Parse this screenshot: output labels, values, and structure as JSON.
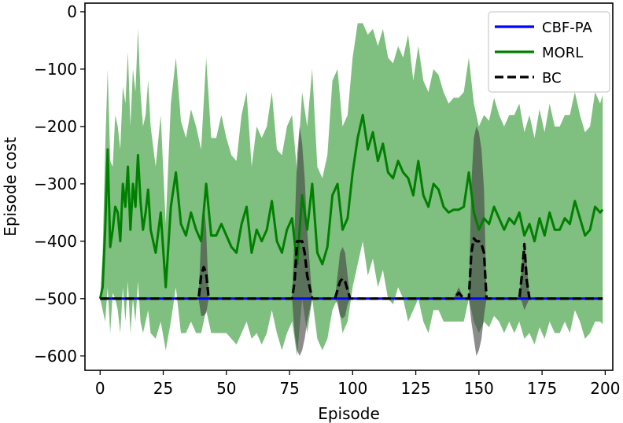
{
  "chart_data": {
    "type": "line",
    "title": "",
    "xlabel": "Episode",
    "ylabel": "Episode cost",
    "xlim": [
      -6,
      203
    ],
    "ylim": [
      -625,
      15
    ],
    "xticks": [
      0,
      25,
      50,
      75,
      100,
      125,
      150,
      175,
      200
    ],
    "yticks": [
      0,
      -100,
      -200,
      -300,
      -400,
      -500,
      -600
    ],
    "xtick_labels": [
      "0",
      "25",
      "50",
      "75",
      "100",
      "125",
      "150",
      "175",
      "200"
    ],
    "ytick_labels": [
      "0",
      "−100",
      "−200",
      "−300",
      "−400",
      "−500",
      "−600"
    ],
    "grid": false,
    "legend_position": "top-right",
    "series": [
      {
        "name": "CBF-PA",
        "color": "#0000ff",
        "style": "solid",
        "x": [
          0,
          199
        ],
        "y": [
          -500,
          -500
        ]
      },
      {
        "name": "MORL",
        "color": "#008000",
        "style": "solid",
        "band_color": "#7fbf7f",
        "x": [
          0,
          1,
          2,
          3,
          4,
          5,
          6,
          7,
          8,
          9,
          10,
          11,
          12,
          13,
          14,
          15,
          16,
          17,
          18,
          19,
          20,
          22,
          24,
          26,
          28,
          30,
          32,
          34,
          36,
          38,
          40,
          42,
          44,
          46,
          48,
          50,
          52,
          54,
          56,
          58,
          60,
          62,
          64,
          66,
          68,
          70,
          72,
          74,
          76,
          78,
          80,
          82,
          84,
          86,
          88,
          90,
          92,
          94,
          96,
          98,
          100,
          102,
          104,
          106,
          108,
          110,
          112,
          114,
          116,
          118,
          120,
          122,
          124,
          126,
          128,
          130,
          132,
          134,
          136,
          138,
          140,
          142,
          144,
          146,
          148,
          150,
          152,
          154,
          156,
          158,
          160,
          162,
          164,
          166,
          168,
          170,
          172,
          174,
          176,
          178,
          180,
          182,
          184,
          186,
          188,
          190,
          192,
          194,
          196,
          198,
          199
        ],
        "y": [
          -500,
          -480,
          -380,
          -240,
          -410,
          -380,
          -340,
          -350,
          -400,
          -300,
          -340,
          -270,
          -380,
          -300,
          -340,
          -250,
          -330,
          -380,
          -350,
          -310,
          -380,
          -420,
          -350,
          -480,
          -340,
          -280,
          -370,
          -390,
          -350,
          -380,
          -400,
          -300,
          -390,
          -390,
          -370,
          -390,
          -410,
          -420,
          -370,
          -340,
          -420,
          -380,
          -400,
          -380,
          -330,
          -400,
          -420,
          -380,
          -360,
          -440,
          -320,
          -380,
          -300,
          -420,
          -440,
          -410,
          -320,
          -300,
          -380,
          -360,
          -280,
          -220,
          -180,
          -240,
          -210,
          -260,
          -230,
          -280,
          -290,
          -260,
          -280,
          -290,
          -320,
          -260,
          -320,
          -340,
          -300,
          -310,
          -340,
          -350,
          -345,
          -345,
          -340,
          -280,
          -350,
          -380,
          -360,
          -370,
          -340,
          -360,
          -380,
          -360,
          -370,
          -350,
          -390,
          -370,
          -400,
          -360,
          -390,
          -350,
          -380,
          -380,
          -360,
          -370,
          -330,
          -360,
          -390,
          -380,
          -340,
          -350,
          -345
        ],
        "y_lower": [
          -500,
          -520,
          -540,
          -480,
          -560,
          -490,
          -500,
          -520,
          -560,
          -480,
          -540,
          -470,
          -560,
          -500,
          -540,
          -470,
          -540,
          -560,
          -540,
          -520,
          -560,
          -570,
          -540,
          -590,
          -540,
          -480,
          -560,
          -560,
          -540,
          -560,
          -560,
          -520,
          -560,
          -560,
          -560,
          -560,
          -570,
          -580,
          -560,
          -540,
          -570,
          -560,
          -580,
          -560,
          -520,
          -560,
          -590,
          -560,
          -540,
          -600,
          -500,
          -560,
          -500,
          -570,
          -590,
          -570,
          -520,
          -500,
          -560,
          -540,
          -480,
          -440,
          -400,
          -460,
          -430,
          -480,
          -450,
          -500,
          -510,
          -480,
          -500,
          -540,
          -520,
          -500,
          -540,
          -560,
          -520,
          -520,
          -540,
          -540,
          -540,
          -540,
          -540,
          -500,
          -540,
          -560,
          -540,
          -550,
          -530,
          -540,
          -560,
          -540,
          -560,
          -540,
          -570,
          -560,
          -580,
          -550,
          -570,
          -540,
          -560,
          -560,
          -540,
          -560,
          -520,
          -540,
          -570,
          -560,
          -540,
          -540,
          -545
        ],
        "y_upper": [
          -500,
          -420,
          -240,
          -100,
          -260,
          -270,
          -180,
          -200,
          -240,
          -130,
          -160,
          -70,
          -200,
          -100,
          -140,
          -30,
          -140,
          -200,
          -180,
          -120,
          -200,
          -270,
          -180,
          -370,
          -160,
          -80,
          -190,
          -220,
          -170,
          -200,
          -240,
          -80,
          -220,
          -220,
          -180,
          -220,
          -250,
          -260,
          -180,
          -140,
          -270,
          -200,
          -220,
          -200,
          -140,
          -240,
          -250,
          -200,
          -180,
          -280,
          -140,
          -200,
          -100,
          -270,
          -290,
          -250,
          -120,
          -100,
          -200,
          -180,
          -80,
          -20,
          -20,
          -40,
          -30,
          -60,
          -30,
          -80,
          -90,
          -60,
          -80,
          -40,
          -120,
          -60,
          -120,
          -140,
          -100,
          -110,
          -140,
          -160,
          -150,
          -150,
          -140,
          -80,
          -160,
          -200,
          -180,
          -190,
          -150,
          -180,
          -200,
          -180,
          -180,
          -160,
          -210,
          -180,
          -220,
          -170,
          -210,
          -160,
          -200,
          -200,
          -180,
          -180,
          -140,
          -180,
          -210,
          -200,
          -140,
          -160,
          -145
        ]
      },
      {
        "name": "BC",
        "color": "#000000",
        "style": "dashed",
        "band_color": "#404040",
        "x": [
          0,
          39,
          40,
          41,
          42,
          43,
          44,
          76,
          77,
          78,
          79,
          80,
          81,
          82,
          83,
          84,
          85,
          93,
          94,
          95,
          96,
          97,
          98,
          99,
          140,
          141,
          142,
          143,
          144,
          146,
          147,
          148,
          149,
          150,
          151,
          152,
          153,
          166,
          167,
          168,
          169,
          170,
          199
        ],
        "y": [
          -500,
          -500,
          -460,
          -445,
          -455,
          -500,
          -500,
          -500,
          -470,
          -400,
          -400,
          -400,
          -420,
          -460,
          -480,
          -500,
          -500,
          -500,
          -485,
          -470,
          -465,
          -470,
          -485,
          -500,
          -500,
          -495,
          -490,
          -495,
          -500,
          -500,
          -420,
          -395,
          -400,
          -400,
          -405,
          -420,
          -500,
          -500,
          -460,
          -405,
          -470,
          -500,
          -500
        ],
        "y_lower": [
          -500,
          -500,
          -530,
          -530,
          -525,
          -500,
          -500,
          -500,
          -560,
          -590,
          -600,
          -590,
          -570,
          -540,
          -520,
          -500,
          -500,
          -500,
          -510,
          -530,
          -535,
          -530,
          -510,
          -500,
          -500,
          -500,
          -498,
          -500,
          -500,
          -500,
          -540,
          -570,
          -600,
          -590,
          -570,
          -530,
          -500,
          -500,
          -505,
          -520,
          -510,
          -500,
          -500
        ],
        "y_upper": [
          -500,
          -500,
          -390,
          -330,
          -380,
          -500,
          -500,
          -500,
          -380,
          -250,
          -200,
          -230,
          -290,
          -380,
          -440,
          -500,
          -500,
          -500,
          -460,
          -420,
          -410,
          -420,
          -460,
          -500,
          -500,
          -490,
          -480,
          -490,
          -500,
          -500,
          -300,
          -220,
          -200,
          -210,
          -240,
          -310,
          -500,
          -500,
          -440,
          -400,
          -440,
          -500,
          -500
        ]
      }
    ]
  }
}
